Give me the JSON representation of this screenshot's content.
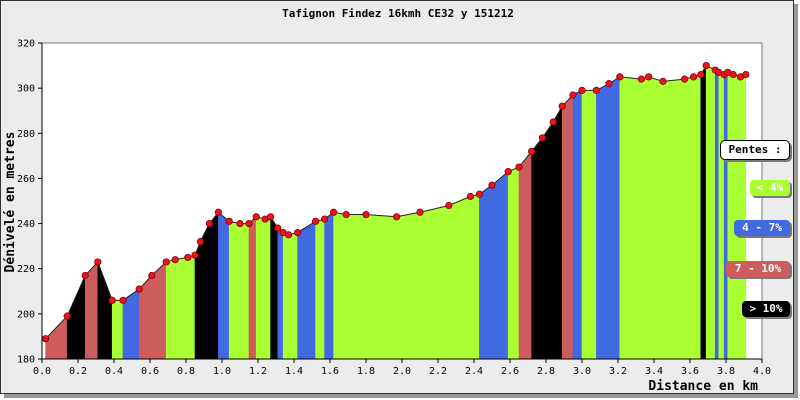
{
  "chart_data": {
    "type": "area",
    "title": "Tafignon Findez 16kmh CE32 y 151212",
    "xlabel": "Distance en km",
    "ylabel": "Dénivelé en metres",
    "xlim": [
      0.0,
      4.0
    ],
    "ylim": [
      180,
      320
    ],
    "xticks": [
      "0.0",
      "0.2",
      "0.4",
      "0.6",
      "0.8",
      "1.0",
      "1.2",
      "1.4",
      "1.6",
      "1.8",
      "2.0",
      "2.2",
      "2.4",
      "2.6",
      "2.8",
      "3.0",
      "3.2",
      "3.4",
      "3.6",
      "3.8",
      "4.0"
    ],
    "yticks": [
      "180",
      "200",
      "220",
      "240",
      "260",
      "280",
      "300",
      "320"
    ],
    "grid": false,
    "legend_title": "Pentes :",
    "legend": [
      {
        "label": "< 4%",
        "color": "#aaff33",
        "text_color": "#ffffff"
      },
      {
        "label": "4 - 7%",
        "color": "#4169e1",
        "text_color": "#ffffff"
      },
      {
        "label": "7 - 10%",
        "color": "#cd5c5c",
        "text_color": "#ffffff"
      },
      {
        "label": "> 10%",
        "color": "#000000",
        "text_color": "#ffffff"
      }
    ],
    "colors": {
      "lt4": "#aaff33",
      "p4_7": "#4169e1",
      "p7_10": "#cd5c5c",
      "gt10": "#000000"
    },
    "points": [
      [
        0.02,
        189
      ],
      [
        0.14,
        199
      ],
      [
        0.24,
        217
      ],
      [
        0.31,
        223
      ],
      [
        0.39,
        206
      ],
      [
        0.45,
        206
      ],
      [
        0.54,
        211
      ],
      [
        0.61,
        217
      ],
      [
        0.69,
        223
      ],
      [
        0.74,
        224
      ],
      [
        0.81,
        225
      ],
      [
        0.85,
        226
      ],
      [
        0.88,
        232
      ],
      [
        0.93,
        240
      ],
      [
        0.98,
        245
      ],
      [
        1.04,
        241
      ],
      [
        1.1,
        240
      ],
      [
        1.15,
        240
      ],
      [
        1.19,
        243
      ],
      [
        1.24,
        242
      ],
      [
        1.27,
        243
      ],
      [
        1.31,
        238
      ],
      [
        1.34,
        236
      ],
      [
        1.37,
        235
      ],
      [
        1.42,
        236
      ],
      [
        1.52,
        241
      ],
      [
        1.57,
        242
      ],
      [
        1.62,
        245
      ],
      [
        1.69,
        244
      ],
      [
        1.8,
        244
      ],
      [
        1.97,
        243
      ],
      [
        2.1,
        245
      ],
      [
        2.26,
        248
      ],
      [
        2.38,
        252
      ],
      [
        2.43,
        253
      ],
      [
        2.5,
        257
      ],
      [
        2.59,
        263
      ],
      [
        2.65,
        265
      ],
      [
        2.72,
        272
      ],
      [
        2.78,
        278
      ],
      [
        2.84,
        285
      ],
      [
        2.89,
        292
      ],
      [
        2.95,
        297
      ],
      [
        3.0,
        299
      ],
      [
        3.08,
        299
      ],
      [
        3.15,
        302
      ],
      [
        3.21,
        305
      ],
      [
        3.33,
        304
      ],
      [
        3.37,
        305
      ],
      [
        3.45,
        303
      ],
      [
        3.57,
        304
      ],
      [
        3.62,
        305
      ],
      [
        3.66,
        306
      ],
      [
        3.69,
        310
      ],
      [
        3.74,
        308
      ],
      [
        3.76,
        307
      ],
      [
        3.79,
        306
      ],
      [
        3.81,
        307
      ],
      [
        3.84,
        306
      ],
      [
        3.88,
        305
      ],
      [
        3.91,
        306
      ]
    ]
  }
}
